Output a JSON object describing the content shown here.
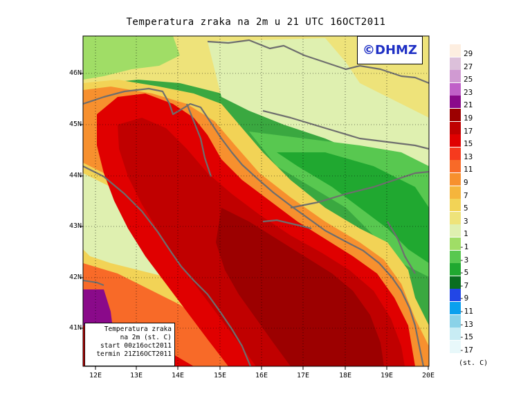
{
  "title": "Temperatura zraka na 2m u 21 UTC 16OCT2011",
  "logo_text": "©DHMZ",
  "info_box": {
    "line1": "Temperatura zraka",
    "line2": "na 2m (st. C)",
    "line3": "start 00z16oct2011",
    "line4": "termin 21Z16OCT2011"
  },
  "lat_labels": [
    "46N",
    "45N",
    "44N",
    "43N",
    "42N",
    "41N"
  ],
  "lon_labels": [
    "12E",
    "13E",
    "14E",
    "15E",
    "16E",
    "17E",
    "18E",
    "19E",
    "20E"
  ],
  "legend": {
    "unit": "(st. C)",
    "labels": [
      "29",
      "27",
      "25",
      "23",
      "21",
      "19",
      "17",
      "15",
      "13",
      "11",
      "9",
      "7",
      "5",
      "3",
      "1",
      "-1",
      "-3",
      "-5",
      "-7",
      "-9",
      "-11",
      "-13",
      "-15",
      "-17"
    ],
    "colors": [
      "#fdeee0",
      "#dcc0da",
      "#d09ad2",
      "#c060c8",
      "#8a0a8a",
      "#9c0000",
      "#c00000",
      "#e00000",
      "#f63a1e",
      "#f86a28",
      "#f7902e",
      "#f5b53c",
      "#f2d356",
      "#eee37a",
      "#dff0b0",
      "#a0dd66",
      "#58c850",
      "#20a830",
      "#0a6e20",
      "#2246e6",
      "#0aa0ee",
      "#8ad2e8",
      "#c8ecf4",
      "#e8f8fa"
    ]
  },
  "colors": {
    "sea_warm": "#c80a0a",
    "sea_core": "#b00000",
    "coast": "#6e6e6e",
    "logo_text": "#1e2fc4"
  }
}
